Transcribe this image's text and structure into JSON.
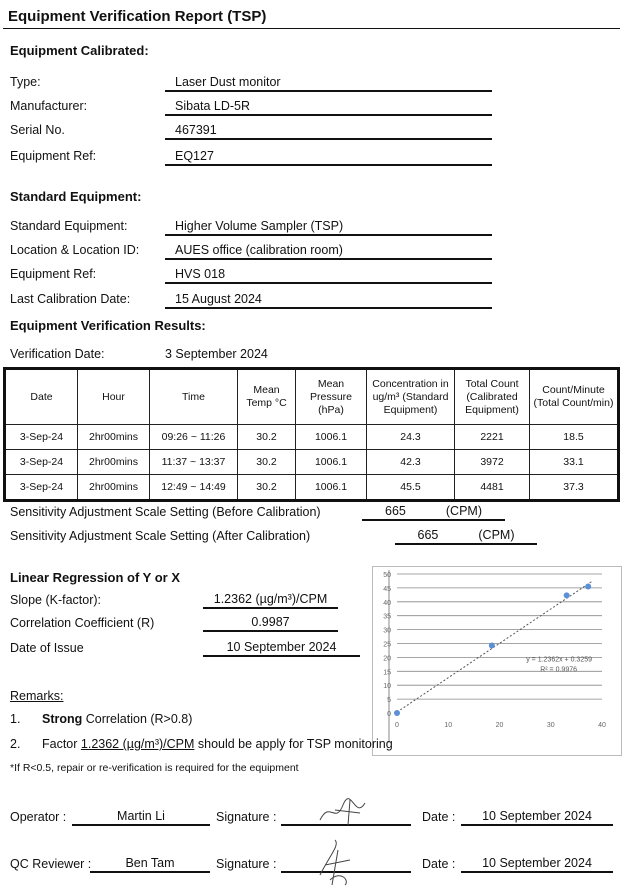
{
  "title": "Equipment Verification Report (TSP)",
  "equipment_calibrated": {
    "heading": "Equipment Calibrated:",
    "rows": [
      {
        "label": "Type:",
        "value": "Laser Dust monitor"
      },
      {
        "label": "Manufacturer:",
        "value": "Sibata LD-5R"
      },
      {
        "label": "Serial No.",
        "value": "467391"
      },
      {
        "label": "Equipment Ref:",
        "value": "EQ127"
      }
    ]
  },
  "standard_equipment": {
    "heading": "Standard Equipment:",
    "rows": [
      {
        "label": "Standard Equipment:",
        "value": "Higher Volume Sampler (TSP)"
      },
      {
        "label": "Location & Location ID:",
        "value": "AUES office (calibration room)"
      },
      {
        "label": "Equipment Ref:",
        "value": "HVS 018"
      },
      {
        "label": "Last Calibration Date:",
        "value": "15 August 2024"
      }
    ]
  },
  "results": {
    "heading": "Equipment Verification Results:",
    "verification_date_label": "Verification Date:",
    "verification_date": "3 September 2024",
    "columns": [
      "Date",
      "Hour",
      "Time",
      "Mean Temp °C",
      "Mean Pressure (hPa)",
      "Concentration in ug/m³ (Standard Equipment)",
      "Total Count (Calibrated Equipment)",
      "Count/Minute (Total Count/min)"
    ],
    "rows": [
      [
        "3-Sep-24",
        "2hr00mins",
        "09:26 ~ 11:26",
        "30.2",
        "1006.1",
        "24.3",
        "2221",
        "18.5"
      ],
      [
        "3-Sep-24",
        "2hr00mins",
        "11:37 ~ 13:37",
        "30.2",
        "1006.1",
        "42.3",
        "3972",
        "33.1"
      ],
      [
        "3-Sep-24",
        "2hr00mins",
        "12:49 ~ 14:49",
        "30.2",
        "1006.1",
        "45.5",
        "4481",
        "37.3"
      ]
    ],
    "sensitivity_before_label": "Sensitivity Adjustment Scale Setting (Before Calibration)",
    "sensitivity_before": "665",
    "sensitivity_after_label": "Sensitivity Adjustment Scale Setting (After Calibration)",
    "sensitivity_after": "665",
    "unit": "(CPM)"
  },
  "regression": {
    "heading": "Linear Regression of Y or X",
    "slope_label": "Slope (K-factor):",
    "slope": "1.2362 (µg/m³)/CPM",
    "r_label": "Correlation Coefficient (R)",
    "r": "0.9987",
    "issue_label": "Date of Issue",
    "issue_date": "10 September 2024"
  },
  "chart_data": {
    "type": "scatter",
    "x": [
      0,
      18.5,
      33.1,
      37.3
    ],
    "y": [
      0,
      24.3,
      42.3,
      45.5
    ],
    "xlim": [
      0,
      40
    ],
    "ylim": [
      0,
      50
    ],
    "xticks": [
      "0",
      "10",
      "20",
      "30",
      "40"
    ],
    "yticks": [
      "0",
      "5",
      "10",
      "15",
      "20",
      "25",
      "30",
      "35",
      "40",
      "45",
      "50"
    ],
    "grid": true,
    "trendline": {
      "slope": 1.2362,
      "intercept": 0.3259
    },
    "equation": "y = 1.2362x + 0.3259",
    "r2": "R² = 0.9976",
    "point_color": "#5b8fd6"
  },
  "remarks": {
    "heading": "Remarks:",
    "item1_num": "1.",
    "item1_bold": "Strong",
    "item1_text": " Correlation (R>0.8)",
    "item2_num": "2.",
    "item2_pre": "Factor ",
    "item2_factor": "1.2362 (µg/m³)/CPM",
    "item2_post": " should be apply for TSP monitoring",
    "note": "*If R<0.5, repair or re-verification is required for the equipment"
  },
  "signoff": {
    "operator_label": "Operator :",
    "operator": "Martin Li",
    "qc_label": "QC Reviewer :",
    "qc": "Ben Tam",
    "signature_label": "Signature :",
    "date_label": "Date :",
    "operator_date": "10 September 2024",
    "qc_date": "10 September 2024"
  }
}
